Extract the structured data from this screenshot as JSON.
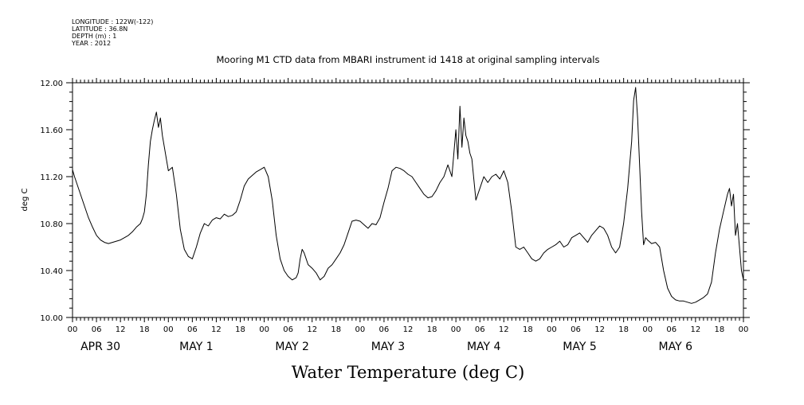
{
  "meta_lines": [
    "LONGITUDE : 122W(-122)",
    "LATITUDE : 36.8N",
    "DEPTH (m) : 1",
    "YEAR : 2012"
  ],
  "chart_data": {
    "type": "line",
    "title": "Mooring M1 CTD data from MBARI instrument id 1418 at original sampling intervals",
    "xlabel": "",
    "ylabel": "deg C",
    "footer_title": "Water Temperature (deg C)",
    "ylim": [
      10.0,
      12.0
    ],
    "yticks": [
      "10.00",
      "10.40",
      "10.80",
      "11.20",
      "11.60",
      "12.00"
    ],
    "xlim_hours": [
      0,
      168
    ],
    "x_hour_tick_labels": [
      "00",
      "06",
      "12",
      "18",
      "00",
      "06",
      "12",
      "18",
      "00",
      "06",
      "12",
      "18",
      "00",
      "06",
      "12",
      "18",
      "00",
      "06",
      "12",
      "18",
      "00",
      "06",
      "12",
      "18",
      "00",
      "06",
      "12",
      "18",
      "00"
    ],
    "day_labels": [
      "APR 30",
      "MAY  1",
      "MAY  2",
      "MAY  3",
      "MAY  4",
      "MAY  5",
      "MAY  6"
    ],
    "grid": false,
    "series": [
      {
        "x_hours": [
          0,
          0.5,
          1,
          2,
          3,
          4,
          5,
          6,
          7,
          8,
          9,
          10,
          11,
          12,
          13,
          14,
          15,
          16,
          17,
          17.5,
          18,
          18.5,
          19,
          19.5,
          20,
          20.5,
          21,
          21.5,
          22,
          22.5,
          23,
          23.5,
          24,
          25,
          26,
          27,
          28,
          29,
          30,
          31,
          32,
          33,
          34,
          35,
          36,
          37,
          38,
          39,
          40,
          41,
          42,
          43,
          44,
          45,
          46,
          47,
          48,
          49,
          50,
          51,
          52,
          53,
          54,
          55,
          56,
          56.5,
          57,
          57.5,
          58,
          58.5,
          59,
          60,
          61,
          62,
          63,
          64,
          65,
          66,
          67,
          68,
          69,
          70,
          71,
          72,
          73,
          74,
          75,
          76,
          77,
          78,
          79,
          80,
          81,
          82,
          83,
          84,
          85,
          86,
          87,
          88,
          89,
          90,
          91,
          92,
          93,
          94,
          95,
          95.5,
          96,
          96.5,
          97,
          97.5,
          98,
          98.5,
          99,
          99.5,
          100,
          101,
          102,
          103,
          104,
          105,
          106,
          107,
          108,
          109,
          110,
          111,
          112,
          113,
          114,
          115,
          116,
          117,
          118,
          119,
          120,
          121,
          122,
          123,
          124,
          125,
          126,
          127,
          128,
          129,
          130,
          131,
          132,
          133,
          134,
          135,
          136,
          137,
          138,
          139,
          140,
          140.5,
          141,
          141.5,
          142,
          142.5,
          143,
          143.5,
          144,
          145,
          146,
          147,
          148,
          149,
          150,
          151,
          152,
          153,
          154,
          155,
          156,
          157,
          158,
          159,
          160,
          161,
          162,
          163,
          164,
          164.5,
          165,
          165.5,
          166,
          166.5,
          167,
          167.5,
          168
        ],
        "values": [
          11.26,
          11.2,
          11.15,
          11.05,
          10.95,
          10.85,
          10.77,
          10.7,
          10.66,
          10.64,
          10.63,
          10.64,
          10.65,
          10.66,
          10.68,
          10.7,
          10.73,
          10.77,
          10.8,
          10.84,
          10.9,
          11.05,
          11.3,
          11.5,
          11.6,
          11.68,
          11.75,
          11.62,
          11.7,
          11.55,
          11.45,
          11.35,
          11.25,
          11.28,
          11.05,
          10.75,
          10.58,
          10.52,
          10.5,
          10.6,
          10.72,
          10.8,
          10.78,
          10.83,
          10.85,
          10.84,
          10.88,
          10.86,
          10.87,
          10.9,
          11.0,
          11.12,
          11.18,
          11.21,
          11.24,
          11.26,
          11.28,
          11.2,
          11.0,
          10.7,
          10.5,
          10.4,
          10.35,
          10.32,
          10.34,
          10.38,
          10.5,
          10.58,
          10.55,
          10.5,
          10.45,
          10.42,
          10.38,
          10.32,
          10.35,
          10.42,
          10.45,
          10.5,
          10.55,
          10.62,
          10.72,
          10.82,
          10.83,
          10.82,
          10.79,
          10.76,
          10.8,
          10.79,
          10.85,
          10.98,
          11.1,
          11.25,
          11.28,
          11.27,
          11.25,
          11.22,
          11.2,
          11.15,
          11.1,
          11.05,
          11.02,
          11.03,
          11.08,
          11.15,
          11.2,
          11.3,
          11.2,
          11.4,
          11.6,
          11.35,
          11.8,
          11.45,
          11.7,
          11.55,
          11.5,
          11.4,
          11.35,
          11.0,
          11.1,
          11.2,
          11.15,
          11.2,
          11.22,
          11.18,
          11.25,
          11.15,
          10.9,
          10.6,
          10.58,
          10.6,
          10.55,
          10.5,
          10.48,
          10.5,
          10.55,
          10.58,
          10.6,
          10.62,
          10.65,
          10.6,
          10.62,
          10.68,
          10.7,
          10.72,
          10.68,
          10.64,
          10.7,
          10.74,
          10.78,
          10.76,
          10.7,
          10.6,
          10.55,
          10.6,
          10.8,
          11.1,
          11.5,
          11.85,
          11.96,
          11.7,
          11.3,
          10.9,
          10.62,
          10.68,
          10.66,
          10.63,
          10.64,
          10.6,
          10.4,
          10.25,
          10.18,
          10.15,
          10.14,
          10.14,
          10.13,
          10.12,
          10.13,
          10.15,
          10.17,
          10.2,
          10.3,
          10.55,
          10.75,
          10.9,
          11.05,
          11.1,
          10.95,
          11.05,
          10.7,
          10.8,
          10.6,
          10.4,
          10.32
        ]
      }
    ]
  }
}
